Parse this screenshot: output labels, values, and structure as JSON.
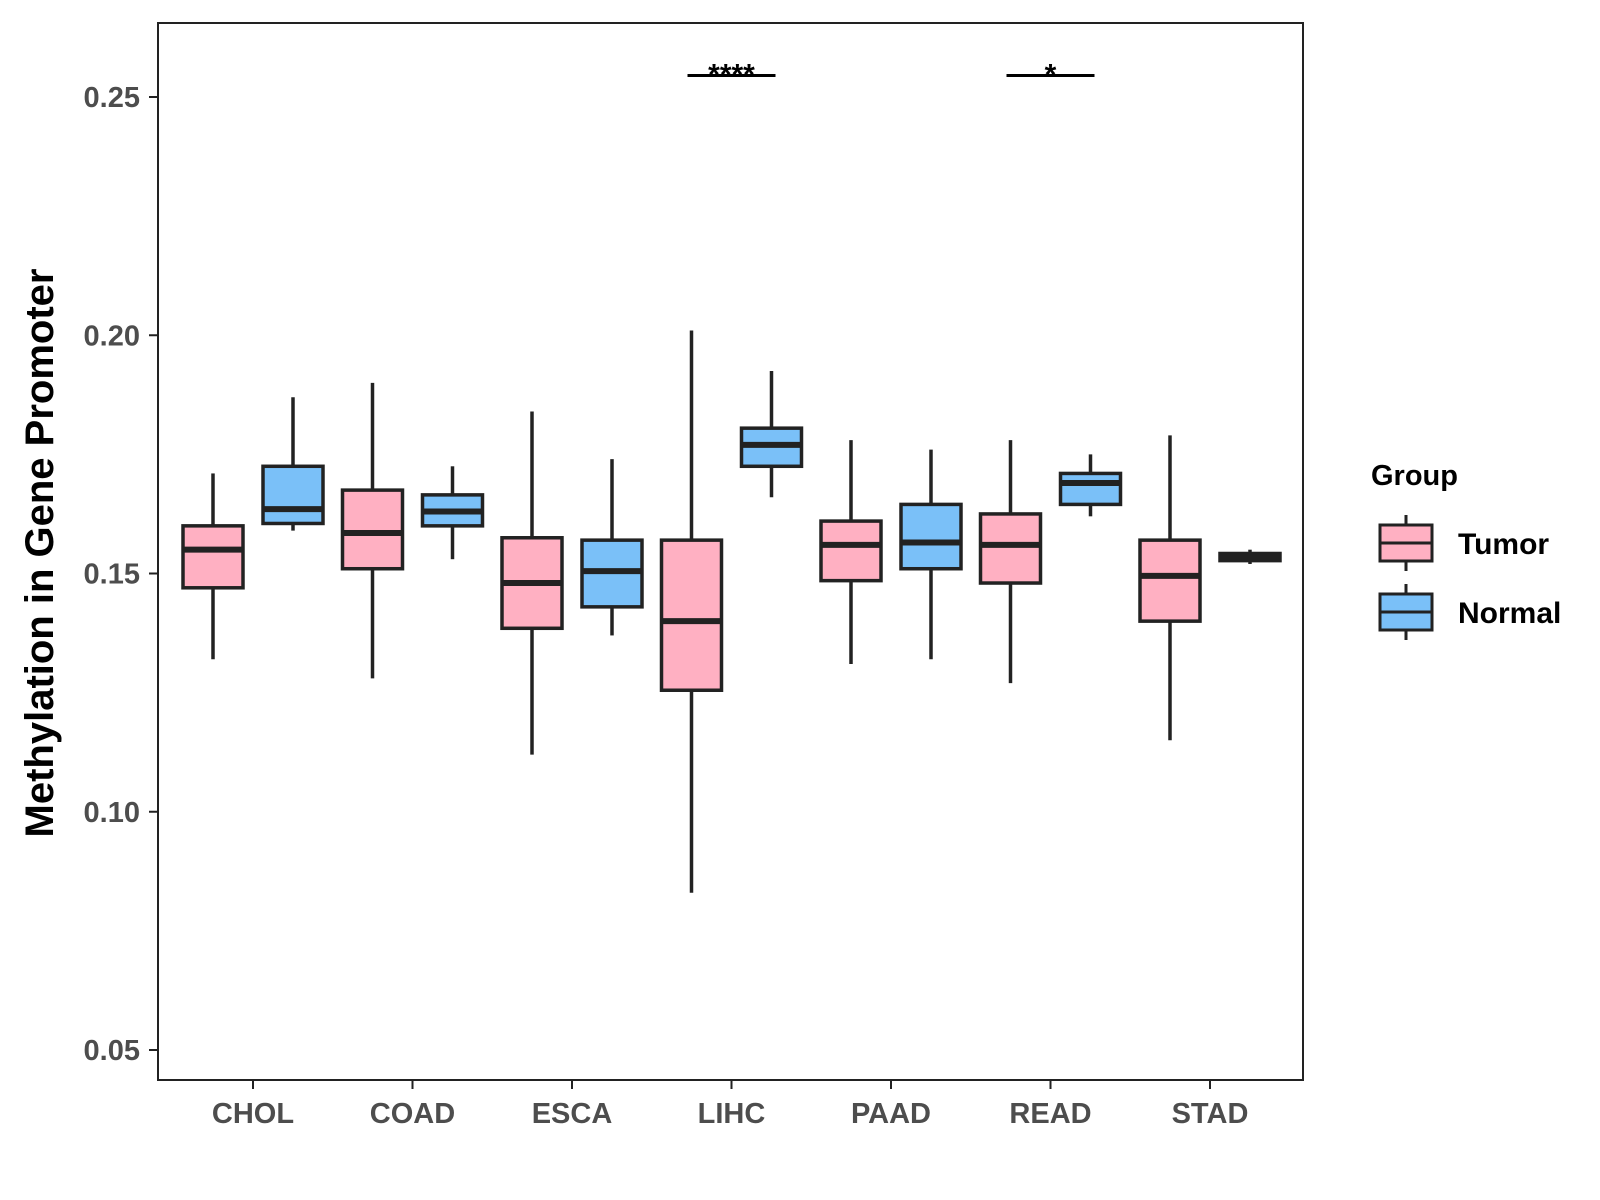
{
  "chart_data": {
    "type": "boxplot",
    "title": "",
    "xlabel": "",
    "ylabel": "Methylation in Gene Promoter",
    "ylim": [
      0.044,
      0.266
    ],
    "yticks": [
      0.05,
      0.1,
      0.15,
      0.2,
      0.25
    ],
    "ytick_labels": [
      "0.05",
      "0.10",
      "0.15",
      "0.20",
      "0.25"
    ],
    "categories": [
      "CHOL",
      "COAD",
      "ESCA",
      "LIHC",
      "PAAD",
      "READ",
      "STAD"
    ],
    "legend": {
      "title": "Group",
      "position": "right",
      "entries": [
        {
          "label": "Tumor",
          "color": "#FFB0C2"
        },
        {
          "label": "Normal",
          "color": "#7AC0F8"
        }
      ]
    },
    "series": [
      {
        "name": "Tumor",
        "color": "#FFB0C2",
        "boxes": [
          {
            "category": "CHOL",
            "whisker_low": 0.132,
            "q1": 0.147,
            "median": 0.155,
            "q3": 0.16,
            "whisker_high": 0.171
          },
          {
            "category": "COAD",
            "whisker_low": 0.128,
            "q1": 0.151,
            "median": 0.1585,
            "q3": 0.1675,
            "whisker_high": 0.19
          },
          {
            "category": "ESCA",
            "whisker_low": 0.112,
            "q1": 0.1385,
            "median": 0.148,
            "q3": 0.1575,
            "whisker_high": 0.184
          },
          {
            "category": "LIHC",
            "whisker_low": 0.083,
            "q1": 0.1255,
            "median": 0.14,
            "q3": 0.157,
            "whisker_high": 0.201
          },
          {
            "category": "PAAD",
            "whisker_low": 0.131,
            "q1": 0.1485,
            "median": 0.156,
            "q3": 0.161,
            "whisker_high": 0.178
          },
          {
            "category": "READ",
            "whisker_low": 0.127,
            "q1": 0.148,
            "median": 0.156,
            "q3": 0.1625,
            "whisker_high": 0.178
          },
          {
            "category": "STAD",
            "whisker_low": 0.115,
            "q1": 0.14,
            "median": 0.1495,
            "q3": 0.157,
            "whisker_high": 0.179
          }
        ]
      },
      {
        "name": "Normal",
        "color": "#7AC0F8",
        "boxes": [
          {
            "category": "CHOL",
            "whisker_low": 0.159,
            "q1": 0.1605,
            "median": 0.1635,
            "q3": 0.1725,
            "whisker_high": 0.187
          },
          {
            "category": "COAD",
            "whisker_low": 0.153,
            "q1": 0.16,
            "median": 0.163,
            "q3": 0.1665,
            "whisker_high": 0.1725
          },
          {
            "category": "ESCA",
            "whisker_low": 0.137,
            "q1": 0.143,
            "median": 0.1505,
            "q3": 0.157,
            "whisker_high": 0.174
          },
          {
            "category": "LIHC",
            "whisker_low": 0.166,
            "q1": 0.1725,
            "median": 0.177,
            "q3": 0.1805,
            "whisker_high": 0.1925
          },
          {
            "category": "PAAD",
            "whisker_low": 0.132,
            "q1": 0.151,
            "median": 0.1565,
            "q3": 0.1645,
            "whisker_high": 0.176
          },
          {
            "category": "READ",
            "whisker_low": 0.162,
            "q1": 0.1645,
            "median": 0.169,
            "q3": 0.171,
            "whisker_high": 0.175
          },
          {
            "category": "STAD",
            "whisker_low": 0.152,
            "q1": 0.1527,
            "median": 0.1535,
            "q3": 0.1542,
            "whisker_high": 0.155
          }
        ]
      }
    ],
    "annotations": [
      {
        "category": "LIHC",
        "label": "****",
        "y": 0.2545
      },
      {
        "category": "READ",
        "label": "*",
        "y": 0.2545
      }
    ]
  }
}
